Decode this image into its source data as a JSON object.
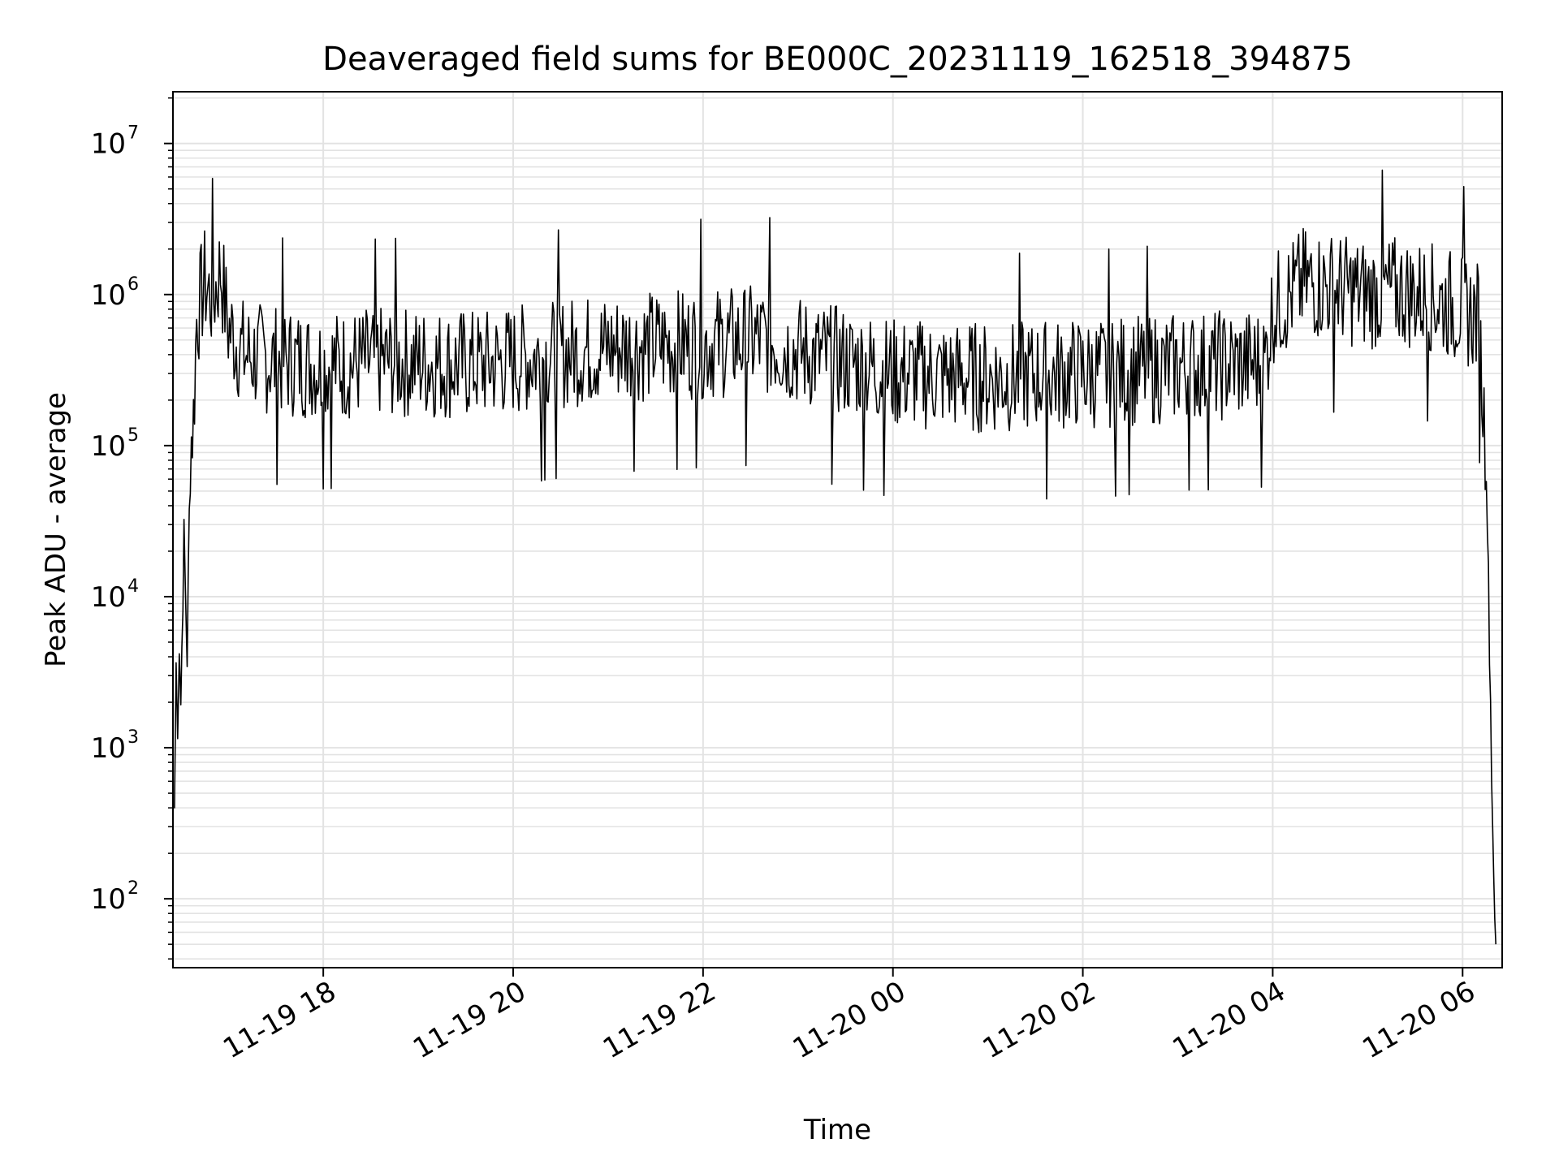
{
  "chart_data": {
    "type": "line",
    "title": "Deaveraged field sums for BE000C_20231119_162518_394875",
    "xlabel": "Time",
    "ylabel": "Peak ADU - average",
    "y_scale": "log",
    "ylim": [
      35,
      22000000
    ],
    "xlim": [
      "2023-11-19 16:25",
      "2023-11-20 06:25"
    ],
    "grid": true,
    "line_color": "#000000",
    "grid_color": "#e3e3e3",
    "x_ticks": [
      {
        "t": "2023-11-19 18:00",
        "label": "11-19 18"
      },
      {
        "t": "2023-11-19 20:00",
        "label": "11-19 20"
      },
      {
        "t": "2023-11-19 22:00",
        "label": "11-19 22"
      },
      {
        "t": "2023-11-20 00:00",
        "label": "11-20 00"
      },
      {
        "t": "2023-11-20 02:00",
        "label": "11-20 02"
      },
      {
        "t": "2023-11-20 04:00",
        "label": "11-20 04"
      },
      {
        "t": "2023-11-20 06:00",
        "label": "11-20 06"
      }
    ],
    "y_ticks": [
      {
        "v": 100,
        "base": "10",
        "exp": "2"
      },
      {
        "v": 1000,
        "base": "10",
        "exp": "3"
      },
      {
        "v": 10000,
        "base": "10",
        "exp": "4"
      },
      {
        "v": 100000,
        "base": "10",
        "exp": "5"
      },
      {
        "v": 1000000,
        "base": "10",
        "exp": "6"
      },
      {
        "v": 10000000,
        "base": "10",
        "exp": "7"
      }
    ],
    "series": [
      {
        "x": [
          "2023-11-19 16:26",
          "2023-11-19 16:27",
          "2023-11-19 16:28",
          "2023-11-19 16:29",
          "2023-11-19 16:30",
          "2023-11-19 16:32",
          "2023-11-19 16:34",
          "2023-11-19 16:36",
          "2023-11-19 16:38",
          "2023-11-19 16:40",
          "2023-11-19 16:45",
          "2023-11-19 16:50",
          "2023-11-19 16:55",
          "2023-11-19 17:00",
          "2023-11-19 17:10",
          "2023-11-19 17:20",
          "2023-11-19 17:35",
          "2023-11-19 17:50",
          "2023-11-19 18:10",
          "2023-11-19 18:40",
          "2023-11-19 19:10",
          "2023-11-19 19:40",
          "2023-11-19 20:10",
          "2023-11-19 20:40",
          "2023-11-19 21:10",
          "2023-11-19 21:40",
          "2023-11-19 22:10",
          "2023-11-19 22:40",
          "2023-11-19 23:00",
          "2023-11-19 23:20",
          "2023-11-19 23:40",
          "2023-11-20 00:00",
          "2023-11-20 00:30",
          "2023-11-20 01:00",
          "2023-11-20 01:30",
          "2023-11-20 02:00",
          "2023-11-20 02:30",
          "2023-11-20 03:00",
          "2023-11-20 03:30",
          "2023-11-20 03:55",
          "2023-11-20 04:00",
          "2023-11-20 04:20",
          "2023-11-20 04:40",
          "2023-11-20 05:00",
          "2023-11-20 05:20",
          "2023-11-20 05:40",
          "2023-11-20 06:00",
          "2023-11-20 06:10",
          "2023-11-20 06:15",
          "2023-11-20 06:17",
          "2023-11-20 06:19",
          "2023-11-20 06:21"
        ],
        "y": [
          400,
          3500,
          1500,
          5000,
          2000,
          25000,
          4000,
          100000,
          150000,
          700000,
          1200000,
          900000,
          1500000,
          600000,
          400000,
          380000,
          360000,
          350000,
          340000,
          360000,
          350000,
          340000,
          380000,
          420000,
          450000,
          460000,
          480000,
          500000,
          420000,
          370000,
          340000,
          300000,
          290000,
          280000,
          290000,
          300000,
          310000,
          330000,
          340000,
          350000,
          800000,
          1200000,
          1100000,
          1000000,
          1050000,
          950000,
          800000,
          700000,
          80000,
          5000,
          300,
          50
        ]
      }
    ]
  }
}
